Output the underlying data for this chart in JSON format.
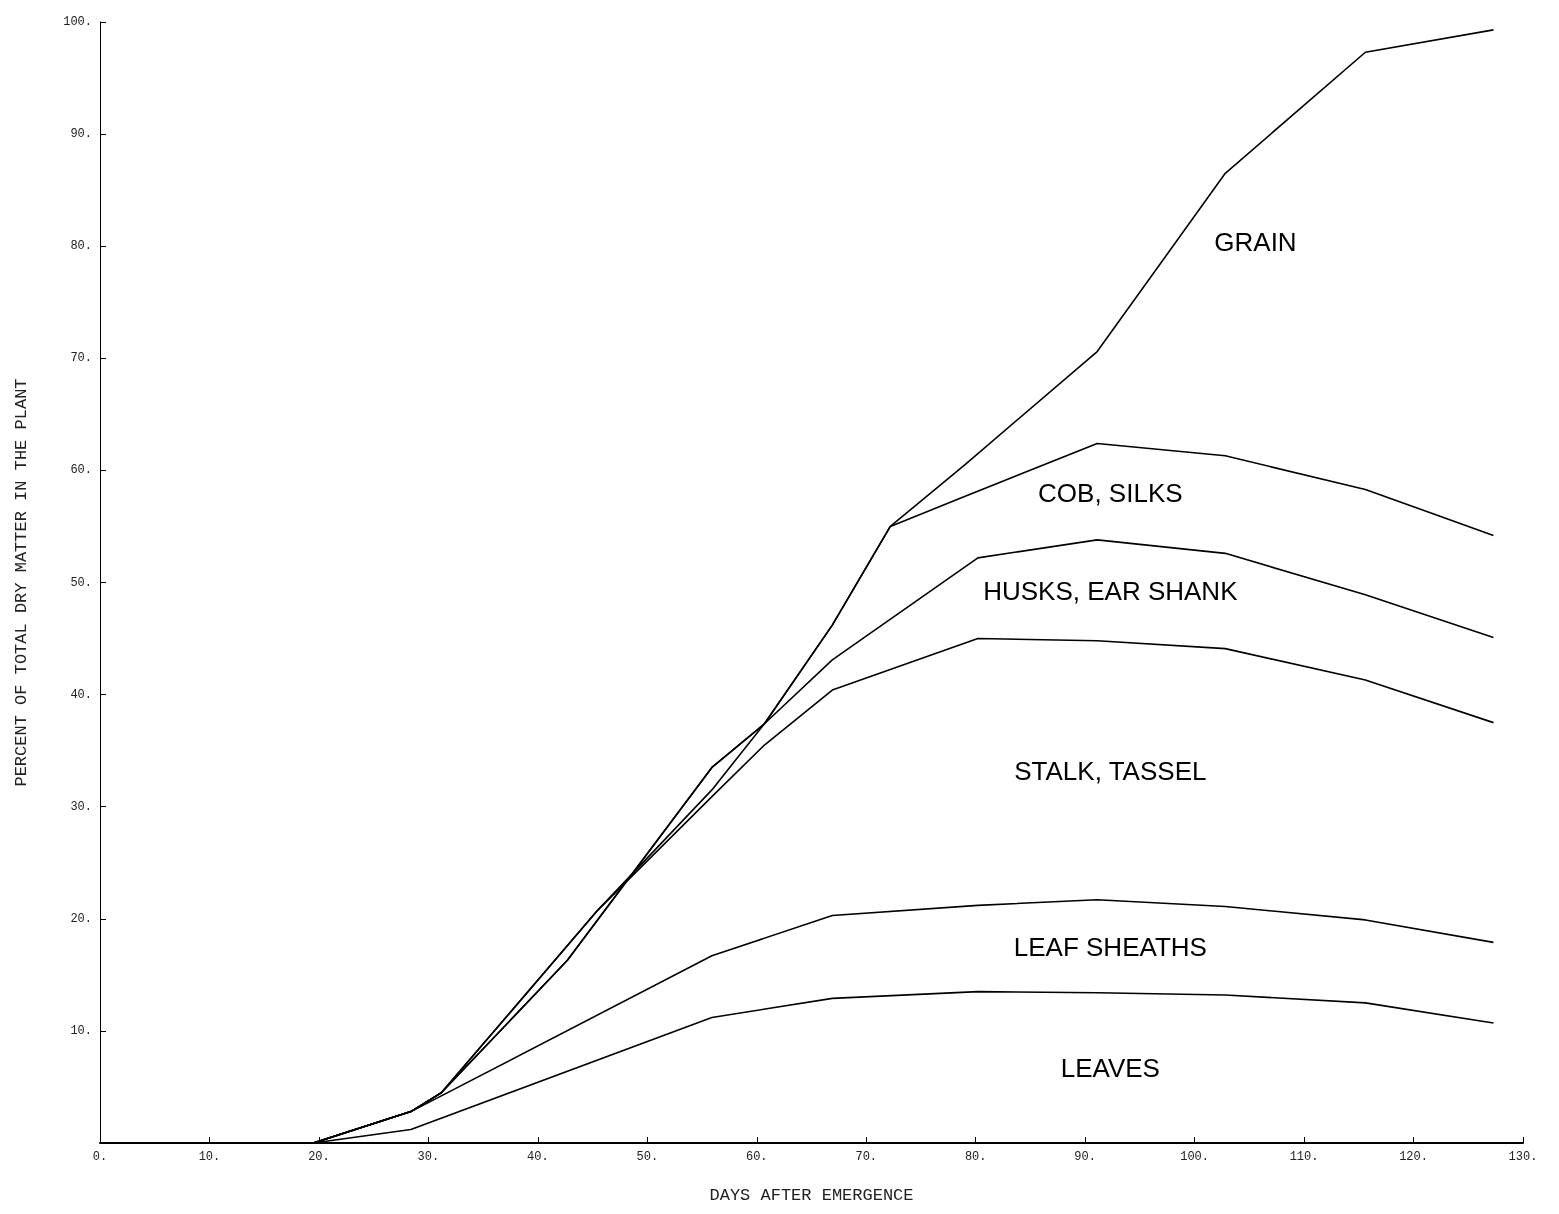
{
  "chart_data": {
    "type": "line",
    "xlabel": "DAYS AFTER EMERGENCE",
    "ylabel": "PERCENT OF TOTAL DRY MATTER IN THE PLANT",
    "xlim": [
      0,
      130
    ],
    "ylim": [
      0,
      100
    ],
    "xticks": [
      {
        "value": 0,
        "label": "0."
      },
      {
        "value": 10,
        "label": "10."
      },
      {
        "value": 20,
        "label": "20."
      },
      {
        "value": 30,
        "label": "30."
      },
      {
        "value": 40,
        "label": "40."
      },
      {
        "value": 50,
        "label": "50."
      },
      {
        "value": 60,
        "label": "60."
      },
      {
        "value": 70,
        "label": "70."
      },
      {
        "value": 80,
        "label": "80."
      },
      {
        "value": 90,
        "label": "90."
      },
      {
        "value": 100,
        "label": "100."
      },
      {
        "value": 110,
        "label": "110."
      },
      {
        "value": 120,
        "label": "120."
      },
      {
        "value": 130,
        "label": "130."
      }
    ],
    "yticks": [
      {
        "value": 0,
        "label": null
      },
      {
        "value": 10,
        "label": "10."
      },
      {
        "value": 20,
        "label": "20."
      },
      {
        "value": 30,
        "label": "30."
      },
      {
        "value": 40,
        "label": "40."
      },
      {
        "value": 50,
        "label": "50."
      },
      {
        "value": 60,
        "label": "60."
      },
      {
        "value": 70,
        "label": "70."
      },
      {
        "value": 80,
        "label": "80."
      },
      {
        "value": 90,
        "label": "90."
      },
      {
        "value": 100,
        "label": "100."
      }
    ],
    "grid": false,
    "marker": "none",
    "line_style": "solid",
    "series": [
      {
        "color": "#000000",
        "x": [
          19.5,
          28.4,
          55.9,
          66.9,
          80.2,
          91.1,
          102.8,
          115.6,
          127.3
        ],
        "values": [
          0,
          1.2,
          11.2,
          12.9,
          13.5,
          13.4,
          13.2,
          12.5,
          10.7
        ]
      },
      {
        "color": "#000000",
        "x": [
          19.5,
          28.4,
          55.9,
          66.9,
          80.2,
          91.1,
          102.8,
          115.6,
          127.3
        ],
        "values": [
          0,
          2.8,
          16.7,
          20.3,
          21.2,
          21.7,
          21.1,
          19.9,
          17.9
        ]
      },
      {
        "color": "#000000",
        "x": [
          19.5,
          28.4,
          31.2,
          45.5,
          55.9,
          60.7,
          66.9,
          80.2,
          91.1,
          102.8,
          115.6,
          127.3
        ],
        "values": [
          0,
          2.8,
          4.5,
          20.8,
          30.9,
          35.5,
          40.4,
          45.0,
          44.8,
          44.1,
          41.3,
          37.5
        ]
      },
      {
        "color": "#000000",
        "x": [
          19.5,
          28.4,
          31.2,
          45.5,
          55.9,
          60.7,
          66.9,
          80.2,
          91.1,
          102.8,
          115.6,
          127.3
        ],
        "values": [
          0,
          2.8,
          4.5,
          20.8,
          31.5,
          37.4,
          43.1,
          52.2,
          53.8,
          52.6,
          48.9,
          45.1
        ]
      },
      {
        "color": "#000000",
        "x": [
          19.5,
          28.4,
          31.2,
          42.7,
          55.9,
          60.7,
          66.9,
          72.2,
          78.3,
          91.1,
          102.8,
          115.6,
          127.3
        ],
        "values": [
          0,
          2.8,
          4.5,
          16.3,
          33.5,
          37.4,
          46.2,
          55.0,
          57.4,
          62.4,
          61.3,
          58.3,
          54.2
        ]
      },
      {
        "color": "#000000",
        "x": [
          19.5,
          28.4,
          31.2,
          42.7,
          55.9,
          60.7,
          66.9,
          72.2,
          79.0,
          91.1,
          102.8,
          115.6,
          127.3
        ],
        "values": [
          0,
          2.8,
          4.5,
          16.3,
          33.5,
          37.4,
          46.2,
          55.0,
          60.5,
          70.6,
          86.5,
          97.3,
          99.3
        ]
      }
    ],
    "annotations": [
      "GRAIN",
      "COB, SILKS",
      "HUSKS, EAR SHANK",
      "STALK, TASSEL",
      "LEAF SHEATHS",
      "LEAVES"
    ]
  }
}
